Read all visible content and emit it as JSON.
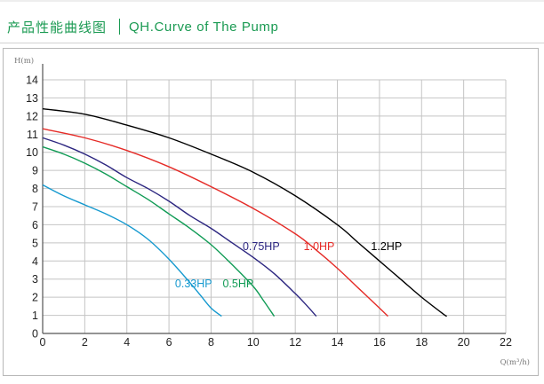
{
  "header": {
    "title_cn": "产品性能曲线图",
    "title_en": "QH.Curve of The Pump"
  },
  "colors": {
    "accent": "#1a9a52",
    "grid": "#c4c4c4",
    "axis": "#555555"
  },
  "chart_data": {
    "type": "line",
    "title": "",
    "xlabel": "Q(m³/h)",
    "ylabel": "H(m)",
    "xlim": [
      0,
      22
    ],
    "ylim": [
      0,
      14
    ],
    "xticks": [
      0,
      2,
      4,
      6,
      8,
      10,
      12,
      14,
      16,
      18,
      20,
      22
    ],
    "yticks": [
      0,
      1,
      2,
      3,
      4,
      5,
      6,
      7,
      8,
      9,
      10,
      11,
      12,
      13,
      14
    ],
    "grid": true,
    "series": [
      {
        "name": "0.33HP",
        "color": "#1599cf",
        "x": [
          0,
          1,
          2,
          3,
          4,
          5,
          6,
          7,
          7.5,
          8,
          8.5
        ],
        "y": [
          8.2,
          7.6,
          7.1,
          6.6,
          6.0,
          5.2,
          4.1,
          2.8,
          2.1,
          1.4,
          0.95
        ]
      },
      {
        "name": "0.5HP",
        "color": "#109b55",
        "x": [
          0,
          1,
          2,
          3,
          4,
          5,
          6,
          7,
          8,
          9,
          10,
          10.5,
          11
        ],
        "y": [
          10.3,
          9.9,
          9.4,
          8.8,
          8.1,
          7.4,
          6.6,
          5.8,
          4.9,
          3.8,
          2.6,
          1.8,
          0.95
        ]
      },
      {
        "name": "0.75HP",
        "color": "#2c2680",
        "x": [
          0,
          1,
          2,
          3,
          4,
          5,
          6,
          7,
          8,
          9,
          10,
          11,
          12,
          12.5,
          13
        ],
        "y": [
          10.8,
          10.4,
          9.9,
          9.3,
          8.6,
          8.0,
          7.3,
          6.5,
          5.8,
          5.0,
          4.2,
          3.3,
          2.2,
          1.6,
          0.95
        ]
      },
      {
        "name": "1.0HP",
        "color": "#e52b27",
        "x": [
          0,
          2,
          4,
          6,
          8,
          10,
          12,
          13,
          14,
          15,
          16,
          16.4
        ],
        "y": [
          11.3,
          10.8,
          10.1,
          9.2,
          8.1,
          6.9,
          5.5,
          4.6,
          3.6,
          2.5,
          1.4,
          0.95
        ]
      },
      {
        "name": "1.2HP",
        "color": "#000000",
        "x": [
          0,
          2,
          4,
          6,
          8,
          10,
          12,
          14,
          15,
          16,
          17,
          18,
          19,
          19.2
        ],
        "y": [
          12.4,
          12.1,
          11.5,
          10.8,
          9.9,
          8.9,
          7.6,
          6.0,
          5.0,
          4.0,
          3.0,
          2.0,
          1.1,
          0.95
        ]
      }
    ],
    "annotations": [
      {
        "text": "0.33HP",
        "series": "0.33HP",
        "x": 8.05,
        "y": 2.55,
        "anchor": "end"
      },
      {
        "text": "0.5HP",
        "series": "0.5HP",
        "x": 8.55,
        "y": 2.55,
        "anchor": "start"
      },
      {
        "text": "0.75HP",
        "series": "0.75HP",
        "x": 9.5,
        "y": 4.6,
        "anchor": "start"
      },
      {
        "text": "1.0HP",
        "series": "1.0HP",
        "x": 12.4,
        "y": 4.6,
        "anchor": "start"
      },
      {
        "text": "1.2HP",
        "series": "1.2HP",
        "x": 15.6,
        "y": 4.6,
        "anchor": "start"
      }
    ]
  }
}
